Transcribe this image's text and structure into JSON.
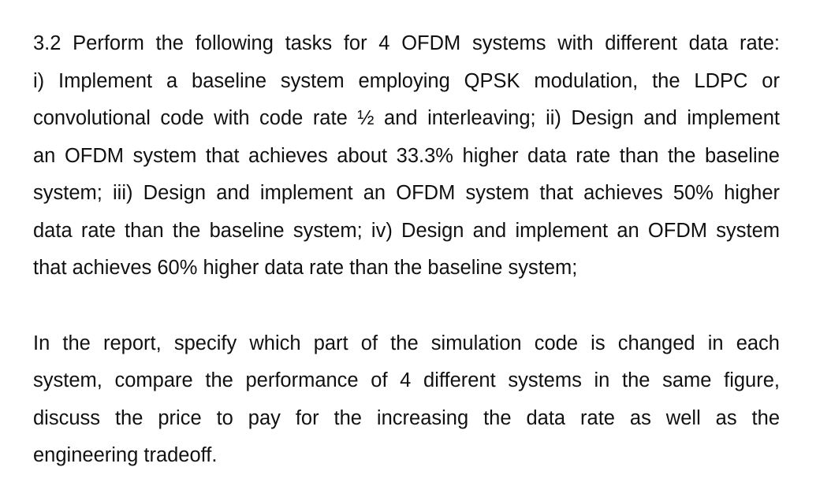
{
  "task_paragraph": {
    "lines": [
      "3.2 Perform the following tasks for 4 OFDM systems with different data rate:",
      "i) Implement a baseline system employing QPSK modulation,  the LDPC or",
      "convolutional code with code rate ½ and interleaving; ii) Design and implement",
      "an OFDM system that achieves about 33.3% higher data rate than the baseline",
      "system; iii) Design and implement an OFDM system that achieves 50% higher",
      "data rate than the baseline system; iv) Design and implement an OFDM system",
      "that achieves 60% higher data rate than the baseline system;"
    ]
  },
  "report_paragraph": {
    "lines": [
      "In the report, specify which part of the simulation code is changed in each",
      "system, compare the performance of 4 different systems in the same figure,",
      "discuss the price to pay for the increasing the data rate as well as the",
      "engineering tradeoff."
    ]
  }
}
